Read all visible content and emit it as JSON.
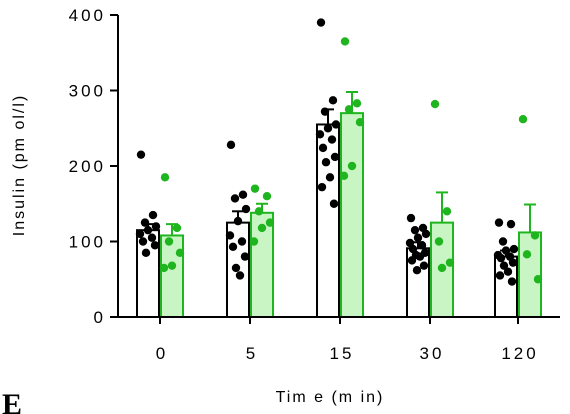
{
  "panel_label": "E",
  "colors": {
    "group_a": "#000000",
    "group_b": "#1fb51f",
    "group_b_fill": "#c9f5c4"
  },
  "chart_data": {
    "type": "bar",
    "title": "",
    "xlabel": "Tim e (m in)",
    "ylabel": "Insulin (pm ol/l)",
    "categories": [
      "0",
      "5",
      "15",
      "30",
      "120"
    ],
    "ylim": [
      0,
      400
    ],
    "yticks": [
      0,
      100,
      200,
      300,
      400
    ],
    "yticklabels": [
      "0",
      "100",
      "200",
      "300",
      "400"
    ],
    "xticklabels": [
      "0",
      "5",
      "15",
      "30",
      "120"
    ],
    "grid": false,
    "legend": "none",
    "series": [
      {
        "color": "#000000",
        "fill": "#ffffff",
        "values": [
          115,
          125,
          255,
          91,
          80
        ],
        "errors": [
          8,
          15,
          20,
          8,
          8
        ],
        "points": [
          [
            215,
            135,
            125,
            120,
            115,
            110,
            105,
            100,
            95,
            85
          ],
          [
            228,
            162,
            157,
            143,
            127,
            108,
            100,
            93,
            80,
            65,
            55
          ],
          [
            390,
            287,
            272,
            255,
            250,
            242,
            235,
            224,
            212,
            205,
            185,
            172,
            150
          ],
          [
            131,
            118,
            115,
            110,
            105,
            98,
            95,
            90,
            85,
            82,
            80,
            75,
            68,
            62
          ],
          [
            125,
            123,
            100,
            90,
            88,
            82,
            80,
            78,
            72,
            68,
            60,
            55,
            47
          ]
        ]
      },
      {
        "color": "#1fb51f",
        "fill": "#c9f5c4",
        "values": [
          108,
          138,
          270,
          125,
          112
        ],
        "errors": [
          15,
          12,
          28,
          40,
          37
        ],
        "points": [
          [
            185,
            118,
            100,
            85,
            68,
            65
          ],
          [
            170,
            160,
            140,
            125,
            118,
            100
          ],
          [
            365,
            283,
            275,
            258,
            200,
            187
          ],
          [
            282,
            140,
            100,
            72,
            65
          ],
          [
            262,
            108,
            83,
            50
          ]
        ]
      }
    ]
  }
}
